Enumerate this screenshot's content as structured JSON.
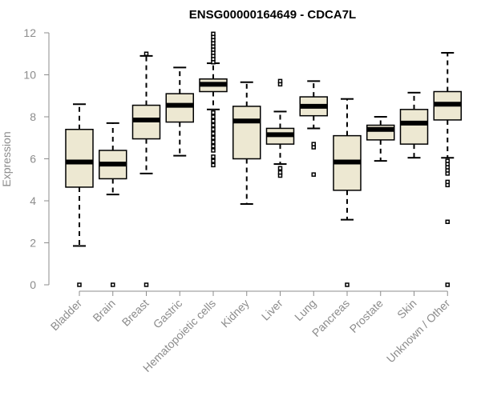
{
  "chart_data": {
    "type": "boxplot",
    "title": "ENSG00000164649 - CDCA7L",
    "xlabel": "",
    "ylabel": "Expression",
    "ylim": [
      0,
      12
    ],
    "yticks": [
      0,
      2,
      4,
      6,
      8,
      10,
      12
    ],
    "colors": {
      "box_fill": "#ede8d2",
      "box_stroke": "#000000",
      "axis": "#8c8c8c",
      "title": "#000000"
    },
    "categories": [
      "Bladder",
      "Brain",
      "Breast",
      "Gastric",
      "Hematopoietic cells",
      "Kidney",
      "Liver",
      "Lung",
      "Pancreas",
      "Prostate",
      "Skin",
      "Unknown / Other"
    ],
    "boxes": [
      {
        "name": "Bladder",
        "whisker_low": 1.85,
        "q1": 4.65,
        "median": 5.85,
        "q3": 7.4,
        "whisker_high": 8.6,
        "outliers": [
          0
        ]
      },
      {
        "name": "Brain",
        "whisker_low": 4.3,
        "q1": 5.05,
        "median": 5.75,
        "q3": 6.4,
        "whisker_high": 7.7,
        "outliers": [
          0
        ]
      },
      {
        "name": "Breast",
        "whisker_low": 5.3,
        "q1": 6.95,
        "median": 7.85,
        "q3": 8.55,
        "whisker_high": 10.9,
        "outliers": [
          0,
          11.0
        ]
      },
      {
        "name": "Gastric",
        "whisker_low": 6.15,
        "q1": 7.75,
        "median": 8.55,
        "q3": 9.1,
        "whisker_high": 10.35,
        "outliers": []
      },
      {
        "name": "Hematopoietic cells",
        "whisker_low": 8.35,
        "q1": 9.2,
        "median": 9.55,
        "q3": 9.8,
        "whisker_high": 10.55,
        "outliers": [
          5.7,
          5.9,
          6.1,
          6.4,
          6.6,
          6.8,
          7.0,
          7.2,
          7.4,
          7.6,
          7.8,
          8.0,
          8.2,
          10.6,
          10.75,
          10.9,
          11.05,
          11.2,
          11.35,
          11.5,
          11.65,
          11.8,
          11.95
        ]
      },
      {
        "name": "Kidney",
        "whisker_low": 3.85,
        "q1": 6.0,
        "median": 7.8,
        "q3": 8.5,
        "whisker_high": 9.65,
        "outliers": []
      },
      {
        "name": "Liver",
        "whisker_low": 5.75,
        "q1": 6.7,
        "median": 7.15,
        "q3": 7.45,
        "whisker_high": 8.25,
        "outliers": [
          5.2,
          5.35,
          5.55,
          9.55,
          9.7
        ]
      },
      {
        "name": "Lung",
        "whisker_low": 7.45,
        "q1": 8.05,
        "median": 8.5,
        "q3": 8.95,
        "whisker_high": 9.7,
        "outliers": [
          5.25,
          6.55,
          6.7
        ]
      },
      {
        "name": "Pancreas",
        "whisker_low": 3.1,
        "q1": 4.5,
        "median": 5.85,
        "q3": 7.1,
        "whisker_high": 8.85,
        "outliers": [
          0
        ]
      },
      {
        "name": "Prostate",
        "whisker_low": 5.9,
        "q1": 6.9,
        "median": 7.4,
        "q3": 7.6,
        "whisker_high": 8.0,
        "outliers": []
      },
      {
        "name": "Skin",
        "whisker_low": 6.05,
        "q1": 6.7,
        "median": 7.7,
        "q3": 8.35,
        "whisker_high": 9.15,
        "outliers": []
      },
      {
        "name": "Unknown / Other",
        "whisker_low": 6.05,
        "q1": 7.85,
        "median": 8.6,
        "q3": 9.2,
        "whisker_high": 11.05,
        "outliers": [
          0,
          3.0,
          4.75,
          4.9,
          5.3,
          5.45,
          5.6,
          5.75,
          5.9
        ]
      }
    ]
  }
}
